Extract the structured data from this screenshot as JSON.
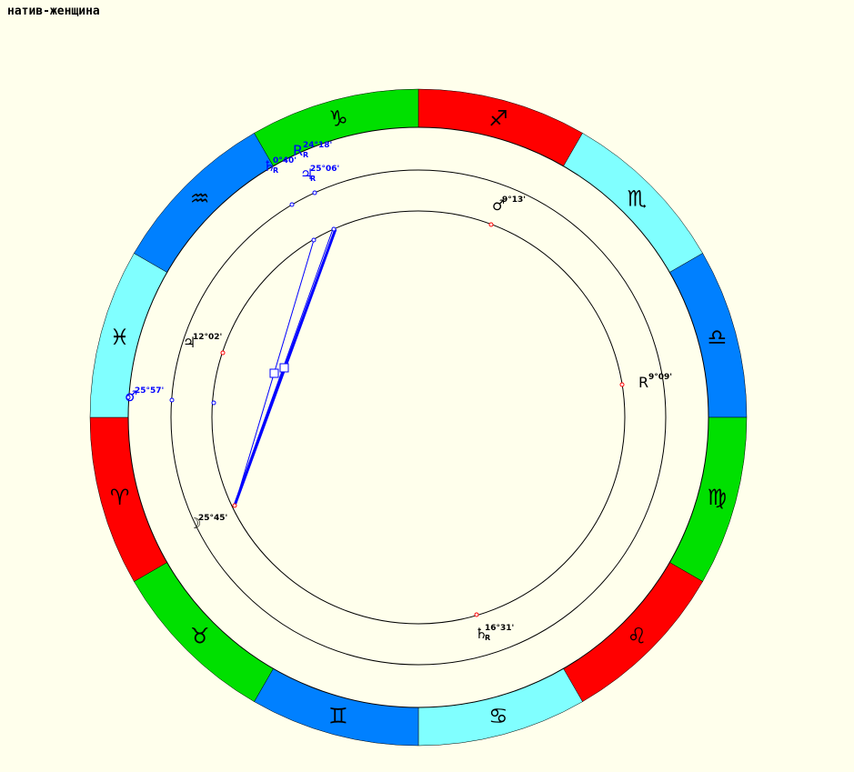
{
  "title": "натив-женщина",
  "signs": [
    {
      "glyph": "♐",
      "color": "#ff0000"
    },
    {
      "glyph": "♏",
      "color": "#80ffff"
    },
    {
      "glyph": "♎",
      "color": "#0080ff"
    },
    {
      "glyph": "♍",
      "color": "#00e000"
    },
    {
      "glyph": "♌",
      "color": "#ff0000"
    },
    {
      "glyph": "♋",
      "color": "#80ffff"
    },
    {
      "glyph": "♊",
      "color": "#0080ff"
    },
    {
      "glyph": "♉",
      "color": "#00e000"
    },
    {
      "glyph": "♈",
      "color": "#ff0000"
    },
    {
      "glyph": "♓",
      "color": "#80ffff"
    },
    {
      "glyph": "♒",
      "color": "#0080ff"
    },
    {
      "glyph": "♑",
      "color": "#00e000"
    }
  ],
  "outer_planets": [
    {
      "glyph": "R",
      "degree": "24°18'",
      "rx": "R"
    },
    {
      "glyph": "♄",
      "degree": "0°40'",
      "rx": "R"
    },
    {
      "glyph": "♃",
      "degree": "25°06'",
      "rx": "R"
    },
    {
      "glyph": "♂",
      "degree": "25°57'"
    }
  ],
  "inner_planets": [
    {
      "glyph": "♂",
      "degree": "9°13'"
    },
    {
      "glyph": "♃",
      "degree": "12°02'"
    },
    {
      "glyph": "R",
      "degree": "9°09'"
    },
    {
      "glyph": "☽",
      "degree": "25°45'"
    },
    {
      "glyph": "♄",
      "degree": "16°31'",
      "rx": "R"
    }
  ]
}
